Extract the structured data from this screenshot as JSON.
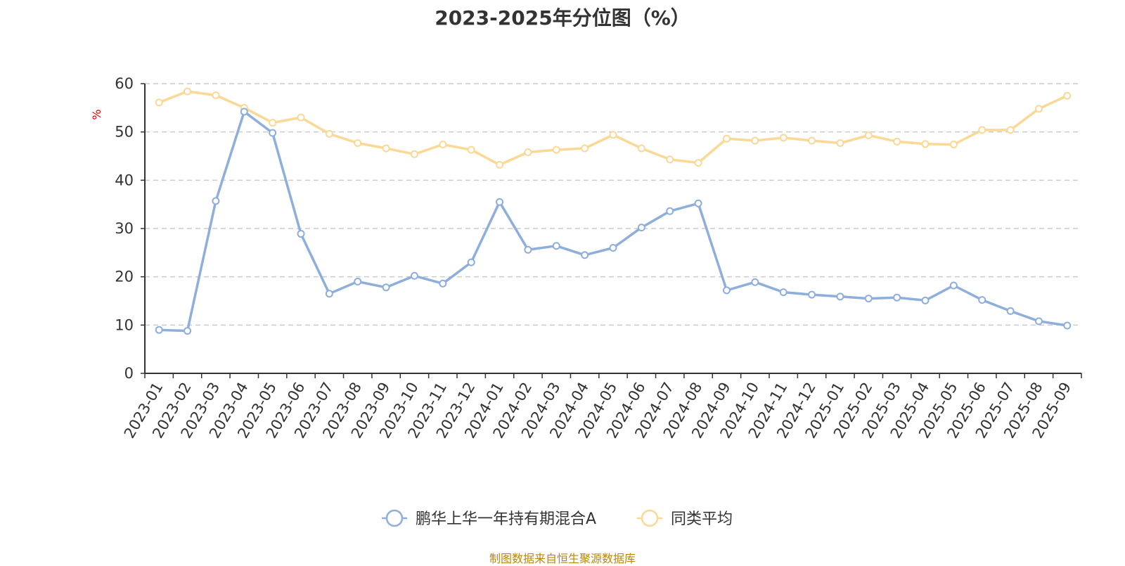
{
  "chart_data": {
    "type": "line",
    "title": "2023-2025年分位图（%）",
    "ylabel": "%",
    "ylim": [
      0,
      60
    ],
    "yticks": [
      0,
      10,
      20,
      30,
      40,
      50,
      60
    ],
    "grid": true,
    "legend_position": "bottom-center",
    "categories": [
      "2023-01",
      "2023-02",
      "2023-03",
      "2023-04",
      "2023-05",
      "2023-06",
      "2023-07",
      "2023-08",
      "2023-09",
      "2023-10",
      "2023-11",
      "2023-12",
      "2024-01",
      "2024-02",
      "2024-03",
      "2024-04",
      "2024-05",
      "2024-06",
      "2024-07",
      "2024-08",
      "2024-09",
      "2024-10",
      "2024-11",
      "2024-12",
      "2025-01",
      "2025-02",
      "2025-03",
      "2025-04",
      "2025-05",
      "2025-06",
      "2025-07",
      "2025-08",
      "2025-09"
    ],
    "series": [
      {
        "name": "鹏华上华一年持有期混合A",
        "color": "#8eaedb",
        "values": [
          9.0,
          8.8,
          35.7,
          54.2,
          49.8,
          28.9,
          16.5,
          19.0,
          17.8,
          20.2,
          18.6,
          23.0,
          35.5,
          25.6,
          26.4,
          24.5,
          26.0,
          30.2,
          33.6,
          35.2,
          17.2,
          18.9,
          16.8,
          16.3,
          15.9,
          15.5,
          15.7,
          15.1,
          18.2,
          15.2,
          12.9,
          10.8,
          9.9
        ]
      },
      {
        "name": "同类平均",
        "color": "#fad896",
        "values": [
          56.1,
          58.4,
          57.6,
          55.0,
          51.9,
          53.0,
          49.6,
          47.7,
          46.6,
          45.4,
          47.4,
          46.3,
          43.2,
          45.8,
          46.3,
          46.6,
          49.4,
          46.6,
          44.3,
          43.6,
          48.6,
          48.2,
          48.8,
          48.2,
          47.7,
          49.3,
          48.0,
          47.5,
          47.4,
          50.4,
          50.4,
          54.8,
          57.5
        ]
      }
    ]
  },
  "footer": "制图数据来自恒生聚源数据库"
}
